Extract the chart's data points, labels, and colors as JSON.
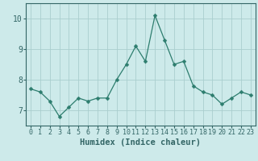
{
  "x": [
    0,
    1,
    2,
    3,
    4,
    5,
    6,
    7,
    8,
    9,
    10,
    11,
    12,
    13,
    14,
    15,
    16,
    17,
    18,
    19,
    20,
    21,
    22,
    23
  ],
  "y": [
    7.7,
    7.6,
    7.3,
    6.8,
    7.1,
    7.4,
    7.3,
    7.4,
    7.4,
    8.0,
    8.5,
    9.1,
    8.6,
    10.1,
    9.3,
    8.5,
    8.6,
    7.8,
    7.6,
    7.5,
    7.2,
    7.4,
    7.6,
    7.5
  ],
  "line_color": "#2d7d6e",
  "marker": "D",
  "marker_size": 2.5,
  "bg_color": "#cdeaea",
  "grid_color": "#aacece",
  "axis_color": "#336666",
  "spine_color": "#336666",
  "xlabel": "Humidex (Indice chaleur)",
  "xlim": [
    -0.5,
    23.5
  ],
  "ylim": [
    6.5,
    10.5
  ],
  "yticks": [
    7,
    8,
    9,
    10
  ],
  "xlabel_fontsize": 7.5,
  "ytick_fontsize": 7,
  "xtick_fontsize": 6
}
